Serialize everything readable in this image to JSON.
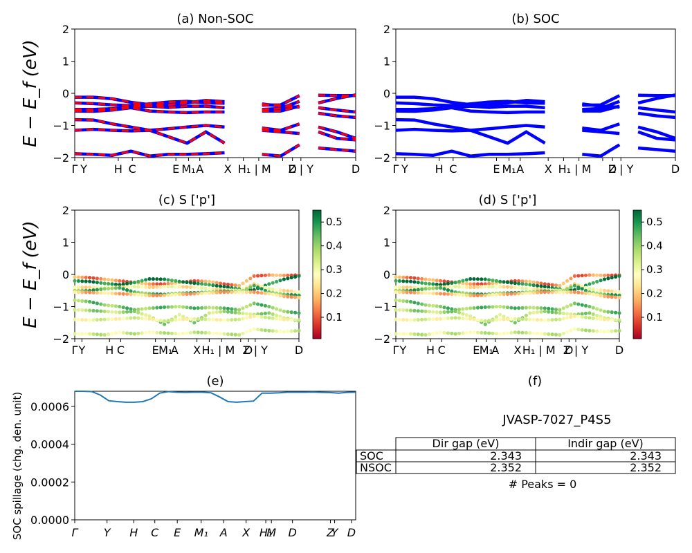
{
  "chart_data": [
    {
      "panel": "a",
      "type": "line",
      "title": "(a) Non-SOC",
      "ylabel": "E − E_f (eV)",
      "ylim": [
        -2,
        2
      ],
      "yticks": [
        "2",
        "1",
        "0",
        "−1",
        "−2"
      ],
      "kpath_labels": [
        "Γ",
        "Y",
        "H",
        "C",
        "E",
        "M₁",
        "A",
        "X",
        "H₁ | M",
        "D",
        "Z | Y",
        "D"
      ],
      "series": [
        {
          "color": "#0000ff",
          "bands": [
            [
              -0.12,
              -0.12,
              -0.17,
              -0.28,
              -0.35,
              -0.36,
              -0.3,
              -0.22,
              -0.26,
              -0.36,
              -0.37,
              -0.36,
              -0.07,
              -0.06,
              -0.07,
              -0.07
            ],
            [
              -0.3,
              -0.32,
              -0.36,
              -0.38,
              -0.33,
              -0.27,
              -0.25,
              -0.3,
              -0.31,
              -0.34,
              -0.33,
              -0.4,
              -0.43,
              -0.3,
              -0.16,
              -0.05
            ],
            [
              -0.5,
              -0.5,
              -0.48,
              -0.43,
              -0.4,
              -0.44,
              -0.4,
              -0.4,
              -0.45,
              -0.52,
              -0.5,
              -0.47,
              -0.25,
              -0.45,
              -0.52,
              -0.58
            ],
            [
              -0.55,
              -0.56,
              -0.52,
              -0.45,
              -0.55,
              -0.58,
              -0.6,
              -0.58,
              -0.58,
              -0.55,
              -0.55,
              -0.55,
              -0.4,
              -0.62,
              -0.7,
              -0.75
            ],
            [
              -0.82,
              -0.83,
              -0.95,
              -1.05,
              -1.15,
              -1.1,
              -1.05,
              -1.0,
              -1.05,
              -1.03,
              -1.08,
              -1.15,
              -0.95,
              -1.05,
              -1.2,
              -1.4
            ],
            [
              -1.15,
              -1.12,
              -1.15,
              -1.17,
              -1.15,
              -1.35,
              -1.55,
              -1.2,
              -1.55,
              -1.2,
              -1.15,
              -1.2,
              -1.25,
              -1.2,
              -1.4,
              -1.45
            ],
            [
              -1.88,
              -1.9,
              -1.93,
              -1.8,
              -1.95,
              -1.9,
              -1.9,
              -1.88,
              -1.85,
              -1.88,
              -1.9,
              -1.95,
              -1.6,
              -1.7,
              -1.75,
              -1.8
            ]
          ]
        },
        {
          "color": "#ff0000",
          "bands": [
            [
              -0.12,
              -0.12,
              -0.17,
              -0.28,
              -0.35,
              -0.36,
              -0.3,
              -0.22,
              -0.26,
              -0.36,
              -0.37,
              -0.36,
              -0.07,
              -0.06,
              -0.07,
              -0.07
            ],
            [
              -0.3,
              -0.32,
              -0.36,
              -0.38,
              -0.33,
              -0.27,
              -0.25,
              -0.3,
              -0.31,
              -0.34,
              -0.33,
              -0.4,
              -0.43,
              -0.3,
              -0.16,
              -0.05
            ],
            [
              -0.5,
              -0.5,
              -0.48,
              -0.43,
              -0.4,
              -0.44,
              -0.4,
              -0.4,
              -0.45,
              -0.52,
              -0.5,
              -0.47,
              -0.25,
              -0.45,
              -0.52,
              -0.58
            ],
            [
              -0.55,
              -0.56,
              -0.52,
              -0.45,
              -0.55,
              -0.58,
              -0.6,
              -0.58,
              -0.58,
              -0.55,
              -0.55,
              -0.55,
              -0.4,
              -0.62,
              -0.7,
              -0.75
            ],
            [
              -0.82,
              -0.83,
              -0.95,
              -1.05,
              -1.15,
              -1.1,
              -1.05,
              -1.0,
              -1.05,
              -1.03,
              -1.08,
              -1.15,
              -0.95,
              -1.05,
              -1.2,
              -1.4
            ],
            [
              -1.15,
              -1.12,
              -1.15,
              -1.17,
              -1.15,
              -1.35,
              -1.55,
              -1.2,
              -1.55,
              -1.2,
              -1.15,
              -1.2,
              -1.25,
              -1.2,
              -1.4,
              -1.45
            ],
            [
              -1.88,
              -1.9,
              -1.93,
              -1.8,
              -1.95,
              -1.9,
              -1.9,
              -1.88,
              -1.85,
              -1.88,
              -1.9,
              -1.95,
              -1.6,
              -1.7,
              -1.75,
              -1.8
            ]
          ]
        }
      ]
    },
    {
      "panel": "b",
      "type": "line",
      "title": "(b) SOC",
      "ylim": [
        -2,
        2
      ],
      "yticks": [
        "2",
        "1",
        "0",
        "−1",
        "−2"
      ],
      "kpath_labels": [
        "Γ",
        "Y",
        "H",
        "C",
        "E",
        "M₁",
        "A",
        "X",
        "H₁ | M",
        "D",
        "Z | Y",
        "D"
      ],
      "series": [
        {
          "color": "#0000ff",
          "bands": [
            [
              -0.12,
              -0.12,
              -0.17,
              -0.28,
              -0.35,
              -0.36,
              -0.3,
              -0.22,
              -0.26,
              -0.36,
              -0.37,
              -0.36,
              -0.07,
              -0.06,
              -0.07,
              -0.07
            ],
            [
              -0.3,
              -0.32,
              -0.36,
              -0.38,
              -0.33,
              -0.27,
              -0.25,
              -0.3,
              -0.31,
              -0.34,
              -0.33,
              -0.4,
              -0.43,
              -0.3,
              -0.16,
              -0.05
            ],
            [
              -0.5,
              -0.5,
              -0.48,
              -0.43,
              -0.4,
              -0.44,
              -0.4,
              -0.4,
              -0.45,
              -0.52,
              -0.5,
              -0.47,
              -0.25,
              -0.45,
              -0.52,
              -0.58
            ],
            [
              -0.55,
              -0.56,
              -0.52,
              -0.45,
              -0.55,
              -0.58,
              -0.6,
              -0.58,
              -0.58,
              -0.55,
              -0.55,
              -0.55,
              -0.4,
              -0.62,
              -0.7,
              -0.75
            ],
            [
              -0.82,
              -0.83,
              -0.95,
              -1.05,
              -1.15,
              -1.1,
              -1.05,
              -1.0,
              -1.05,
              -1.03,
              -1.08,
              -1.15,
              -0.95,
              -1.05,
              -1.2,
              -1.4
            ],
            [
              -1.15,
              -1.12,
              -1.15,
              -1.17,
              -1.15,
              -1.35,
              -1.55,
              -1.2,
              -1.55,
              -1.2,
              -1.15,
              -1.2,
              -1.25,
              -1.2,
              -1.4,
              -1.45
            ],
            [
              -1.88,
              -1.9,
              -1.93,
              -1.8,
              -1.95,
              -1.9,
              -1.9,
              -1.88,
              -1.85,
              -1.88,
              -1.9,
              -1.95,
              -1.6,
              -1.7,
              -1.75,
              -1.8
            ]
          ]
        }
      ]
    },
    {
      "panel": "c",
      "type": "scatter",
      "title": "(c)  S ['p']",
      "ylabel": "E − E_f (eV)",
      "ylim": [
        -2,
        2
      ],
      "yticks": [
        "2",
        "1",
        "0",
        "−1",
        "−2"
      ],
      "kpath_labels": [
        "Γ",
        "Y",
        "H",
        "C",
        "E",
        "M₁",
        "A",
        "X",
        "H₁ | M",
        "D",
        "Z | Y",
        "D"
      ],
      "colorbar": {
        "ticks": [
          "0.5",
          "0.4",
          "0.3",
          "0.2",
          "0.1"
        ],
        "range": [
          0.01,
          0.55
        ],
        "colormap": "RdYlGn"
      },
      "bands": [
        {
          "weight": 0.14,
          "values": [
            -0.08,
            -0.1,
            -0.15,
            -0.2,
            -0.25,
            -0.3,
            -0.3,
            -0.25,
            -0.2,
            -0.22,
            -0.3,
            -0.35,
            -0.05,
            -0.02,
            -0.03,
            -0.02
          ]
        },
        {
          "weight": 0.52,
          "values": [
            -0.2,
            -0.22,
            -0.28,
            -0.32,
            -0.25,
            -0.14,
            -0.15,
            -0.22,
            -0.27,
            -0.32,
            -0.38,
            -0.45,
            -0.48,
            -0.3,
            -0.15,
            -0.05
          ]
        },
        {
          "weight": 0.26,
          "values": [
            -0.4,
            -0.4,
            -0.42,
            -0.4,
            -0.38,
            -0.4,
            -0.38,
            -0.38,
            -0.4,
            -0.45,
            -0.48,
            -0.5,
            -0.3,
            -0.45,
            -0.5,
            -0.55
          ]
        },
        {
          "weight": 0.45,
          "values": [
            -0.5,
            -0.5,
            -0.45,
            -0.42,
            -0.55,
            -0.6,
            -0.62,
            -0.58,
            -0.57,
            -0.55,
            -0.52,
            -0.55,
            -0.35,
            -0.55,
            -0.62,
            -0.65
          ]
        },
        {
          "weight": 0.2,
          "values": [
            -0.55,
            -0.56,
            -0.58,
            -0.6,
            -0.62,
            -0.66,
            -0.65,
            -0.62,
            -0.6,
            -0.58,
            -0.55,
            -0.56,
            -0.55,
            -0.6,
            -0.68,
            -0.72
          ]
        },
        {
          "weight": 0.42,
          "values": [
            -0.8,
            -0.85,
            -0.95,
            -1.0,
            -1.1,
            -1.05,
            -1.02,
            -1.0,
            -1.05,
            -1.03,
            -1.05,
            -1.1,
            -0.9,
            -1.0,
            -1.15,
            -1.2
          ]
        },
        {
          "weight": 0.38,
          "values": [
            -1.1,
            -1.12,
            -1.15,
            -1.18,
            -1.15,
            -1.3,
            -1.55,
            -1.25,
            -1.5,
            -1.2,
            -1.15,
            -1.2,
            -1.25,
            -1.2,
            -1.35,
            -1.45
          ]
        },
        {
          "weight": 0.3,
          "values": [
            -1.4,
            -1.42,
            -1.4,
            -1.38,
            -1.35,
            -1.38,
            -1.45,
            -1.4,
            -1.38,
            -1.4,
            -1.42,
            -1.4,
            -1.3,
            -1.35,
            -1.4,
            -1.42
          ]
        },
        {
          "weight": 0.33,
          "values": [
            -1.85,
            -1.85,
            -1.88,
            -1.8,
            -1.85,
            -1.8,
            -1.82,
            -1.85,
            -1.8,
            -1.82,
            -1.85,
            -1.88,
            -1.7,
            -1.75,
            -1.78,
            -1.75
          ]
        }
      ]
    },
    {
      "panel": "d",
      "type": "scatter",
      "title": "(d) S ['p']",
      "ylim": [
        -2,
        2
      ],
      "yticks": [
        "2",
        "1",
        "0",
        "−1",
        "−2"
      ],
      "kpath_labels": [
        "Γ",
        "Y",
        "H",
        "C",
        "E",
        "M₁",
        "A",
        "X",
        "H₁ | M",
        "D",
        "Z | Y",
        "D"
      ],
      "colorbar": {
        "ticks": [
          "0.5",
          "0.4",
          "0.3",
          "0.2",
          "0.1"
        ],
        "range": [
          0.01,
          0.55
        ],
        "colormap": "RdYlGn"
      },
      "bands": [
        {
          "weight": 0.14,
          "values": [
            -0.08,
            -0.1,
            -0.15,
            -0.2,
            -0.25,
            -0.3,
            -0.3,
            -0.25,
            -0.2,
            -0.22,
            -0.3,
            -0.35,
            -0.05,
            -0.02,
            -0.03,
            -0.02
          ]
        },
        {
          "weight": 0.52,
          "values": [
            -0.2,
            -0.22,
            -0.28,
            -0.32,
            -0.25,
            -0.14,
            -0.15,
            -0.22,
            -0.27,
            -0.32,
            -0.38,
            -0.45,
            -0.48,
            -0.3,
            -0.15,
            -0.05
          ]
        },
        {
          "weight": 0.26,
          "values": [
            -0.4,
            -0.4,
            -0.42,
            -0.4,
            -0.38,
            -0.4,
            -0.38,
            -0.38,
            -0.4,
            -0.45,
            -0.48,
            -0.5,
            -0.3,
            -0.45,
            -0.5,
            -0.55
          ]
        },
        {
          "weight": 0.45,
          "values": [
            -0.5,
            -0.5,
            -0.45,
            -0.42,
            -0.55,
            -0.6,
            -0.62,
            -0.58,
            -0.57,
            -0.55,
            -0.52,
            -0.55,
            -0.35,
            -0.55,
            -0.62,
            -0.65
          ]
        },
        {
          "weight": 0.2,
          "values": [
            -0.55,
            -0.56,
            -0.58,
            -0.6,
            -0.62,
            -0.66,
            -0.65,
            -0.62,
            -0.6,
            -0.58,
            -0.55,
            -0.56,
            -0.55,
            -0.6,
            -0.68,
            -0.72
          ]
        },
        {
          "weight": 0.42,
          "values": [
            -0.8,
            -0.85,
            -0.95,
            -1.0,
            -1.1,
            -1.05,
            -1.02,
            -1.0,
            -1.05,
            -1.03,
            -1.05,
            -1.1,
            -0.9,
            -1.0,
            -1.15,
            -1.2
          ]
        },
        {
          "weight": 0.38,
          "values": [
            -1.1,
            -1.12,
            -1.15,
            -1.18,
            -1.15,
            -1.3,
            -1.55,
            -1.25,
            -1.5,
            -1.2,
            -1.15,
            -1.2,
            -1.25,
            -1.2,
            -1.35,
            -1.45
          ]
        },
        {
          "weight": 0.3,
          "values": [
            -1.4,
            -1.42,
            -1.4,
            -1.38,
            -1.35,
            -1.38,
            -1.45,
            -1.4,
            -1.38,
            -1.4,
            -1.42,
            -1.4,
            -1.3,
            -1.35,
            -1.4,
            -1.42
          ]
        },
        {
          "weight": 0.33,
          "values": [
            -1.85,
            -1.85,
            -1.88,
            -1.8,
            -1.85,
            -1.8,
            -1.82,
            -1.85,
            -1.8,
            -1.82,
            -1.85,
            -1.88,
            -1.7,
            -1.75,
            -1.78,
            -1.75
          ]
        }
      ]
    },
    {
      "panel": "e",
      "type": "line",
      "title": "(e)",
      "ylabel": "SOC spillage (chg. den. unit)",
      "ylim": [
        0,
        0.00068
      ],
      "yticks": [
        "0.0000",
        "0.0002",
        "0.0004",
        "0.0006"
      ],
      "x_labels": [
        "Γ",
        "Y",
        "H",
        "C",
        "E",
        "M₁",
        "A",
        "X",
        "H₁",
        "M",
        "D",
        "Z",
        "Y",
        "D"
      ],
      "color": "#1f77b4",
      "values": [
        0.00068,
        0.00068,
        0.000678,
        0.00066,
        0.00063,
        0.000625,
        0.000622,
        0.000622,
        0.000625,
        0.00064,
        0.00067,
        0.000678,
        0.000675,
        0.000674,
        0.000675,
        0.000675,
        0.000672,
        0.00065,
        0.000625,
        0.000622,
        0.000625,
        0.000628,
        0.00067,
        0.00067,
        0.000672,
        0.000675,
        0.000675,
        0.000675,
        0.000676,
        0.000674,
        0.000673,
        0.00067,
        0.000674,
        0.000675
      ]
    },
    {
      "panel": "f",
      "type": "table",
      "title": "(f)",
      "subtitle": "JVASP-7027_P4S5",
      "columns": [
        "Dir gap (eV)",
        "Indir gap (eV)"
      ],
      "rows": [
        {
          "label": "SOC",
          "values": [
            "2.343",
            "2.343"
          ]
        },
        {
          "label": "NSOC",
          "values": [
            "2.352",
            "2.352"
          ]
        }
      ],
      "footer": "# Peaks = 0"
    }
  ]
}
